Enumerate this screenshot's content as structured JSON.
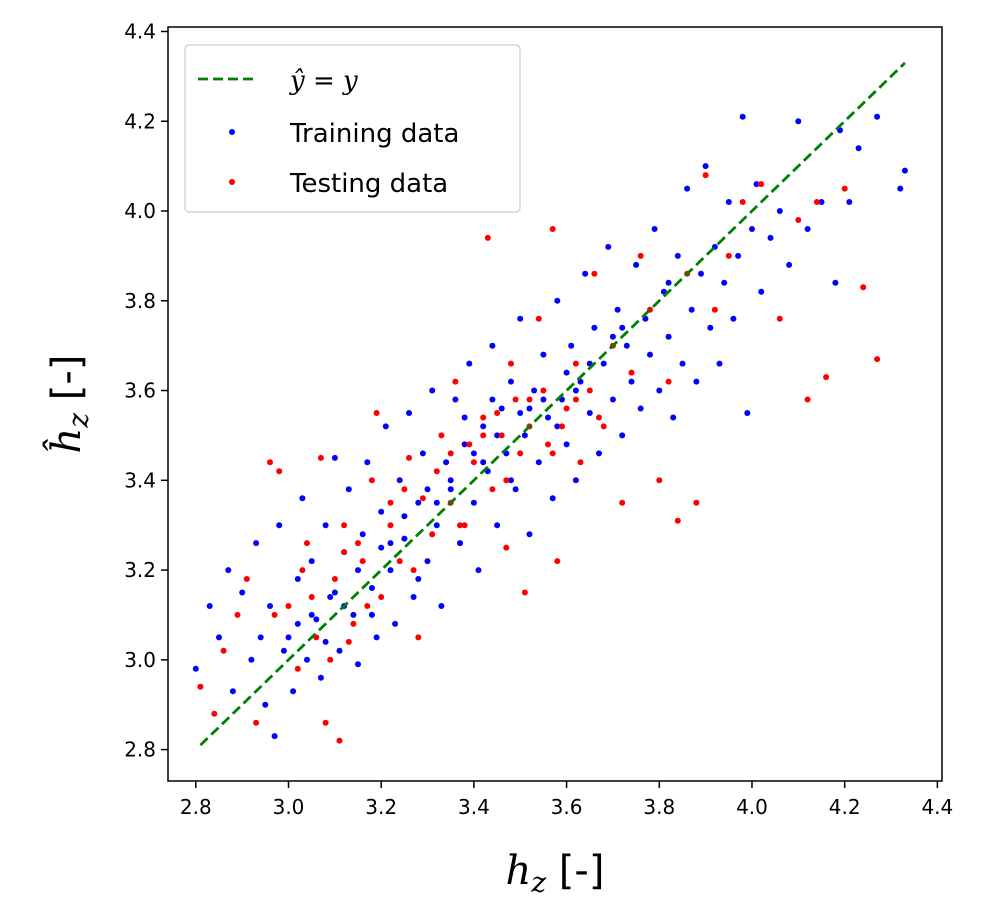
{
  "chart_data": {
    "type": "scatter",
    "title": "",
    "xlabel": "h_z [-]",
    "ylabel": "ĥ_z [-]",
    "xlabel_parts": {
      "base": "h",
      "sub": "z",
      "unit": " [-]"
    },
    "ylabel_parts": {
      "base": "ĥ",
      "sub": "z",
      "unit": " [-]"
    },
    "xlim": [
      2.74,
      4.41
    ],
    "ylim": [
      2.73,
      4.41
    ],
    "xticks": [
      "2.8",
      "3.0",
      "3.2",
      "3.4",
      "3.6",
      "3.8",
      "4.0",
      "4.2",
      "4.4"
    ],
    "yticks": [
      "2.8",
      "3.0",
      "3.2",
      "3.4",
      "3.6",
      "3.8",
      "4.0",
      "4.2",
      "4.4"
    ],
    "grid": false,
    "legend_position": "upper-left",
    "series": [
      {
        "name": "ŷ = y",
        "kind": "line",
        "style": "dashed",
        "color": "#008000",
        "x": [
          2.81,
          4.33
        ],
        "y": [
          2.81,
          4.33
        ],
        "legend_label": {
          "lhs": "ŷ",
          "eq": " = ",
          "rhs": "y"
        }
      },
      {
        "name": "Training data",
        "kind": "scatter",
        "color": "#0000ff",
        "legend_label": "Training data",
        "points": [
          [
            2.8,
            2.98
          ],
          [
            2.83,
            3.12
          ],
          [
            2.85,
            3.05
          ],
          [
            2.87,
            3.2
          ],
          [
            2.88,
            2.93
          ],
          [
            2.9,
            3.15
          ],
          [
            2.92,
            3.0
          ],
          [
            2.93,
            3.26
          ],
          [
            2.95,
            2.9
          ],
          [
            2.96,
            3.12
          ],
          [
            2.97,
            2.83
          ],
          [
            2.98,
            3.3
          ],
          [
            3.0,
            3.05
          ],
          [
            3.01,
            2.93
          ],
          [
            3.02,
            3.18
          ],
          [
            3.03,
            3.36
          ],
          [
            3.04,
            3.0
          ],
          [
            3.05,
            3.22
          ],
          [
            3.06,
            3.09
          ],
          [
            3.07,
            2.96
          ],
          [
            3.08,
            3.3
          ],
          [
            3.09,
            3.14
          ],
          [
            3.1,
            3.45
          ],
          [
            3.11,
            3.02
          ],
          [
            3.12,
            3.24
          ],
          [
            3.13,
            3.38
          ],
          [
            3.14,
            3.1
          ],
          [
            3.15,
            2.99
          ],
          [
            3.16,
            3.28
          ],
          [
            3.17,
            3.44
          ],
          [
            3.18,
            3.16
          ],
          [
            3.19,
            3.05
          ],
          [
            3.2,
            3.33
          ],
          [
            3.21,
            3.52
          ],
          [
            3.22,
            3.2
          ],
          [
            3.23,
            3.08
          ],
          [
            3.24,
            3.4
          ],
          [
            3.25,
            3.27
          ],
          [
            3.26,
            3.55
          ],
          [
            3.27,
            3.14
          ],
          [
            3.28,
            3.35
          ],
          [
            3.29,
            3.46
          ],
          [
            3.3,
            3.22
          ],
          [
            3.31,
            3.6
          ],
          [
            3.32,
            3.3
          ],
          [
            3.33,
            3.12
          ],
          [
            3.34,
            3.44
          ],
          [
            3.35,
            3.38
          ],
          [
            3.36,
            3.58
          ],
          [
            3.37,
            3.26
          ],
          [
            3.38,
            3.48
          ],
          [
            3.39,
            3.66
          ],
          [
            3.4,
            3.35
          ],
          [
            3.41,
            3.2
          ],
          [
            3.42,
            3.52
          ],
          [
            3.43,
            3.42
          ],
          [
            3.44,
            3.7
          ],
          [
            3.45,
            3.3
          ],
          [
            3.46,
            3.56
          ],
          [
            3.47,
            3.46
          ],
          [
            3.48,
            3.62
          ],
          [
            3.49,
            3.38
          ],
          [
            3.5,
            3.76
          ],
          [
            3.51,
            3.5
          ],
          [
            3.52,
            3.28
          ],
          [
            3.53,
            3.6
          ],
          [
            3.54,
            3.44
          ],
          [
            3.55,
            3.68
          ],
          [
            3.56,
            3.54
          ],
          [
            3.57,
            3.36
          ],
          [
            3.58,
            3.8
          ],
          [
            3.59,
            3.58
          ],
          [
            3.6,
            3.48
          ],
          [
            3.61,
            3.7
          ],
          [
            3.62,
            3.4
          ],
          [
            3.63,
            3.62
          ],
          [
            3.64,
            3.86
          ],
          [
            3.65,
            3.55
          ],
          [
            3.66,
            3.74
          ],
          [
            3.67,
            3.46
          ],
          [
            3.68,
            3.66
          ],
          [
            3.69,
            3.92
          ],
          [
            3.7,
            3.58
          ],
          [
            3.71,
            3.78
          ],
          [
            3.72,
            3.5
          ],
          [
            3.73,
            3.7
          ],
          [
            3.74,
            3.62
          ],
          [
            3.75,
            3.88
          ],
          [
            3.76,
            3.56
          ],
          [
            3.77,
            3.76
          ],
          [
            3.78,
            3.68
          ],
          [
            3.79,
            3.96
          ],
          [
            3.8,
            3.6
          ],
          [
            3.81,
            3.82
          ],
          [
            3.82,
            3.72
          ],
          [
            3.83,
            3.54
          ],
          [
            3.84,
            3.9
          ],
          [
            3.85,
            3.66
          ],
          [
            3.86,
            4.05
          ],
          [
            3.87,
            3.78
          ],
          [
            3.88,
            3.62
          ],
          [
            3.89,
            3.86
          ],
          [
            3.9,
            4.1
          ],
          [
            3.91,
            3.74
          ],
          [
            3.92,
            3.92
          ],
          [
            3.93,
            3.66
          ],
          [
            3.94,
            3.84
          ],
          [
            3.95,
            4.02
          ],
          [
            3.96,
            3.76
          ],
          [
            3.97,
            3.9
          ],
          [
            3.98,
            4.21
          ],
          [
            3.99,
            3.55
          ],
          [
            4.0,
            3.96
          ],
          [
            4.01,
            4.06
          ],
          [
            4.02,
            3.82
          ],
          [
            4.04,
            3.94
          ],
          [
            4.06,
            4.0
          ],
          [
            4.08,
            3.88
          ],
          [
            4.1,
            4.2
          ],
          [
            4.12,
            3.96
          ],
          [
            4.15,
            4.02
          ],
          [
            4.18,
            3.84
          ],
          [
            4.19,
            4.18
          ],
          [
            4.21,
            4.02
          ],
          [
            4.23,
            4.14
          ],
          [
            4.27,
            4.21
          ],
          [
            4.32,
            4.05
          ],
          [
            4.33,
            4.09
          ],
          [
            3.15,
            3.2
          ],
          [
            3.25,
            3.32
          ],
          [
            3.35,
            3.4
          ],
          [
            3.45,
            3.5
          ],
          [
            3.55,
            3.58
          ],
          [
            3.65,
            3.66
          ],
          [
            3.05,
            3.1
          ],
          [
            3.1,
            3.15
          ],
          [
            3.2,
            3.25
          ],
          [
            3.3,
            3.38
          ],
          [
            3.4,
            3.46
          ],
          [
            3.5,
            3.55
          ],
          [
            3.6,
            3.64
          ],
          [
            3.7,
            3.72
          ],
          [
            3.02,
            3.08
          ],
          [
            2.99,
            3.02
          ],
          [
            2.94,
            3.05
          ],
          [
            3.12,
            3.12
          ],
          [
            3.22,
            3.26
          ],
          [
            3.32,
            3.35
          ],
          [
            3.42,
            3.44
          ],
          [
            3.52,
            3.56
          ],
          [
            3.62,
            3.6
          ],
          [
            3.72,
            3.74
          ],
          [
            3.82,
            3.84
          ],
          [
            3.44,
            3.58
          ],
          [
            3.38,
            3.54
          ],
          [
            3.48,
            3.4
          ],
          [
            3.58,
            3.52
          ],
          [
            3.28,
            3.18
          ],
          [
            3.18,
            3.1
          ],
          [
            3.08,
            3.04
          ]
        ]
      },
      {
        "name": "Testing data",
        "kind": "scatter",
        "color": "#ff0000",
        "legend_label": "Testing data",
        "points": [
          [
            2.81,
            2.94
          ],
          [
            2.84,
            2.88
          ],
          [
            2.86,
            3.02
          ],
          [
            2.89,
            3.1
          ],
          [
            2.91,
            3.18
          ],
          [
            2.93,
            2.86
          ],
          [
            2.96,
            3.44
          ],
          [
            2.98,
            3.42
          ],
          [
            3.0,
            3.12
          ],
          [
            3.02,
            2.98
          ],
          [
            3.04,
            3.26
          ],
          [
            3.06,
            3.05
          ],
          [
            3.07,
            3.45
          ],
          [
            3.08,
            2.86
          ],
          [
            3.1,
            3.18
          ],
          [
            3.11,
            2.82
          ],
          [
            3.12,
            3.3
          ],
          [
            3.14,
            3.08
          ],
          [
            3.16,
            3.22
          ],
          [
            3.18,
            3.4
          ],
          [
            3.19,
            3.55
          ],
          [
            3.2,
            3.14
          ],
          [
            3.22,
            3.3
          ],
          [
            3.24,
            3.22
          ],
          [
            3.26,
            3.45
          ],
          [
            3.28,
            3.05
          ],
          [
            3.29,
            3.36
          ],
          [
            3.31,
            3.28
          ],
          [
            3.33,
            3.5
          ],
          [
            3.35,
            3.35
          ],
          [
            3.36,
            3.62
          ],
          [
            3.38,
            3.3
          ],
          [
            3.4,
            3.44
          ],
          [
            3.42,
            3.54
          ],
          [
            3.43,
            3.94
          ],
          [
            3.44,
            3.38
          ],
          [
            3.46,
            3.5
          ],
          [
            3.47,
            3.25
          ],
          [
            3.48,
            3.66
          ],
          [
            3.5,
            3.46
          ],
          [
            3.51,
            3.15
          ],
          [
            3.52,
            3.58
          ],
          [
            3.54,
            3.76
          ],
          [
            3.56,
            3.48
          ],
          [
            3.57,
            3.96
          ],
          [
            3.58,
            3.22
          ],
          [
            3.6,
            3.56
          ],
          [
            3.62,
            3.66
          ],
          [
            3.63,
            3.44
          ],
          [
            3.65,
            3.6
          ],
          [
            3.66,
            3.86
          ],
          [
            3.68,
            3.52
          ],
          [
            3.7,
            3.7
          ],
          [
            3.72,
            3.35
          ],
          [
            3.74,
            3.64
          ],
          [
            3.76,
            3.9
          ],
          [
            3.78,
            3.78
          ],
          [
            3.8,
            3.4
          ],
          [
            3.82,
            3.62
          ],
          [
            3.84,
            3.31
          ],
          [
            3.86,
            3.86
          ],
          [
            3.88,
            3.35
          ],
          [
            3.9,
            4.08
          ],
          [
            3.92,
            3.78
          ],
          [
            3.95,
            3.9
          ],
          [
            3.98,
            4.02
          ],
          [
            4.02,
            4.06
          ],
          [
            4.06,
            3.76
          ],
          [
            4.1,
            3.98
          ],
          [
            4.12,
            3.58
          ],
          [
            4.14,
            4.02
          ],
          [
            4.16,
            3.63
          ],
          [
            4.2,
            4.05
          ],
          [
            4.24,
            3.83
          ],
          [
            4.27,
            3.67
          ],
          [
            3.15,
            3.26
          ],
          [
            3.25,
            3.38
          ],
          [
            3.35,
            3.46
          ],
          [
            3.45,
            3.55
          ],
          [
            3.55,
            3.6
          ],
          [
            3.05,
            3.14
          ],
          [
            3.12,
            3.24
          ],
          [
            3.22,
            3.35
          ],
          [
            3.32,
            3.42
          ],
          [
            3.42,
            3.5
          ],
          [
            3.52,
            3.52
          ],
          [
            3.62,
            3.58
          ],
          [
            3.09,
            3.0
          ],
          [
            3.17,
            3.12
          ],
          [
            3.27,
            3.2
          ],
          [
            3.37,
            3.3
          ],
          [
            3.47,
            3.4
          ],
          [
            3.57,
            3.46
          ],
          [
            3.67,
            3.54
          ],
          [
            3.39,
            3.48
          ],
          [
            3.49,
            3.58
          ],
          [
            3.59,
            3.52
          ],
          [
            3.03,
            3.2
          ],
          [
            2.97,
            3.1
          ],
          [
            3.13,
            3.04
          ]
        ]
      }
    ]
  }
}
